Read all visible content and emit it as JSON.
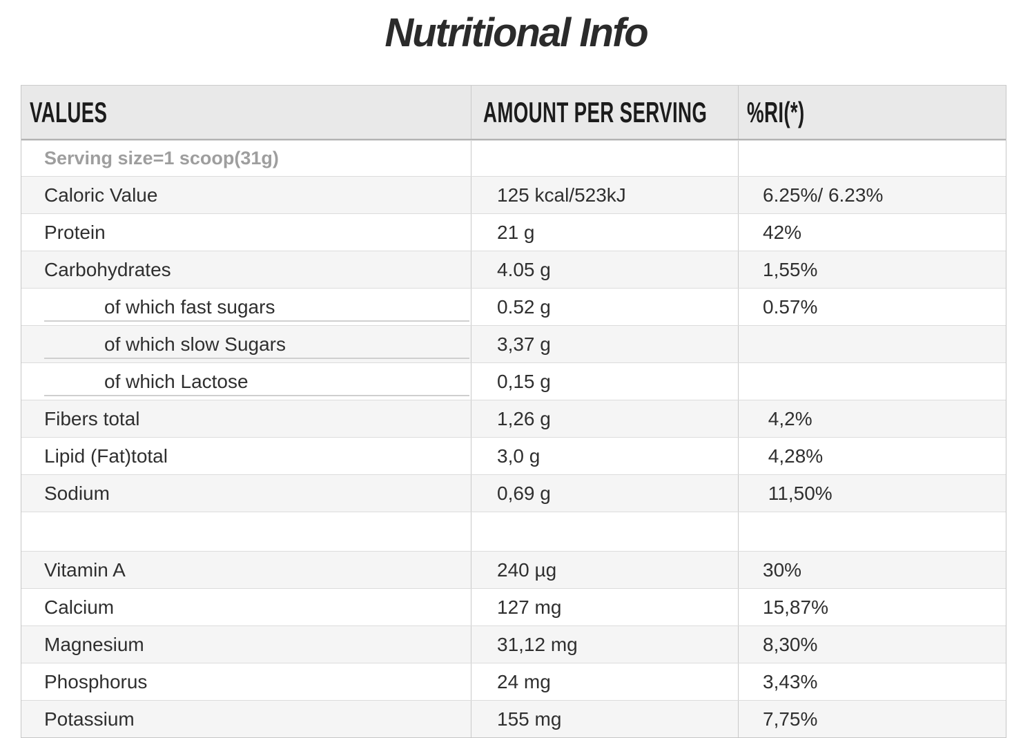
{
  "title": "Nutritional Info",
  "table": {
    "headers": {
      "values": "VALUES",
      "amount": "AMOUNT PER SERVING",
      "ri": "%RI(*)"
    },
    "serving_note": "Serving size=1 scoop(31g)",
    "rows": [
      {
        "name": "Caloric Value",
        "amount": "125 kcal/523kJ",
        "ri": "6.25%/ 6.23%"
      },
      {
        "name": "Protein",
        "amount": "21 g",
        "ri": "42%"
      },
      {
        "name": "Carbohydrates",
        "amount": "4.05 g",
        "ri": "1,55%"
      },
      {
        "name": "of which fast sugars",
        "amount": "0.52 g",
        "ri": "0.57%"
      },
      {
        "name": "of which slow Sugars",
        "amount": "3,37 g",
        "ri": ""
      },
      {
        "name": "of which Lactose",
        "amount": "0,15 g",
        "ri": ""
      },
      {
        "name": "Fibers total",
        "amount": "1,26 g",
        "ri": " 4,2%"
      },
      {
        "name": "Lipid (Fat)total",
        "amount": "3,0 g",
        "ri": " 4,28%"
      },
      {
        "name": "Sodium",
        "amount": "0,69 g",
        "ri": " 11,50%"
      },
      {
        "name": "Vitamin A",
        "amount": "240 µg",
        "ri": "30%"
      },
      {
        "name": "Calcium",
        "amount": "127 mg",
        "ri": "15,87%"
      },
      {
        "name": "Magnesium",
        "amount": "31,12 mg",
        "ri": "8,30%"
      },
      {
        "name": "Phosphorus",
        "amount": "24 mg",
        "ri": "3,43%"
      },
      {
        "name": "Potassium",
        "amount": "155 mg",
        "ri": "7,75%"
      }
    ]
  },
  "colors": {
    "header_background": "#e9e9e9",
    "shaded_row_background": "#f5f5f5",
    "serving_note_text": "#9e9e9e",
    "header_bottom_border": "#b3b3b3",
    "row_border": "#dcdcdc",
    "title_text": "#2b2b2b"
  }
}
